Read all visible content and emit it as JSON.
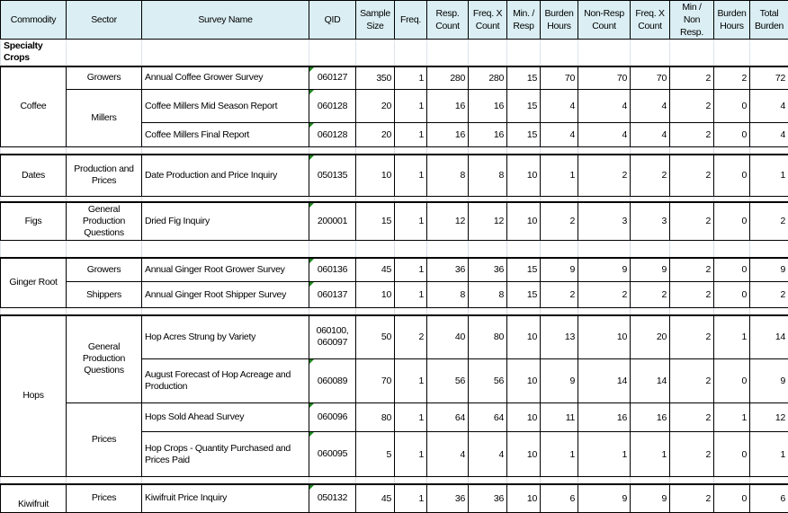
{
  "headers": [
    "Commodity",
    "Sector",
    "Survey Name",
    "QID",
    "Sample Size",
    "Freq.",
    "Resp. Count",
    "Freq. X Count",
    "Min. / Resp",
    "Burden Hours",
    "Non-Resp Count",
    "Freq. X Count",
    "Min / Non Resp.",
    "Burden Hours",
    "Total Burden"
  ],
  "section_title": "Specialty Crops",
  "colors": {
    "header_bg": "#daeef3",
    "comment_marker": "#1a8a1a"
  },
  "groups": [
    {
      "commodity": "Coffee",
      "sectors": [
        {
          "name": "Growers",
          "surveys": [
            {
              "name": "Annual Coffee Grower Survey",
              "qid": "060127",
              "values": [
                350,
                1,
                280,
                280,
                15,
                70,
                70,
                70,
                2,
                2,
                72
              ]
            }
          ]
        },
        {
          "name": "Millers",
          "surveys": [
            {
              "name": "Coffee Millers Mid Season Report",
              "qid": "060128",
              "values": [
                20,
                1,
                16,
                16,
                15,
                4,
                4,
                4,
                2,
                0,
                4
              ]
            },
            {
              "name": "Coffee Millers Final Report",
              "qid": "060128",
              "values": [
                20,
                1,
                16,
                16,
                15,
                4,
                4,
                4,
                2,
                0,
                4
              ]
            }
          ]
        }
      ]
    },
    {
      "commodity": "Dates",
      "sectors": [
        {
          "name": "Production and Prices",
          "surveys": [
            {
              "name": "Date Production and Price Inquiry",
              "qid": "050135",
              "values": [
                10,
                1,
                8,
                8,
                10,
                1,
                2,
                2,
                2,
                0,
                1
              ]
            }
          ]
        }
      ]
    },
    {
      "commodity": "Figs",
      "sectors": [
        {
          "name": "General Production Questions",
          "surveys": [
            {
              "name": "Dried Fig Inquiry",
              "qid": "200001",
              "values": [
                15,
                1,
                12,
                12,
                10,
                2,
                3,
                3,
                2,
                0,
                2
              ]
            }
          ]
        }
      ]
    },
    {
      "commodity": "Ginger Root",
      "sectors": [
        {
          "name": "Growers",
          "surveys": [
            {
              "name": "Annual Ginger Root Grower Survey",
              "qid": "060136",
              "values": [
                45,
                1,
                36,
                36,
                15,
                9,
                9,
                9,
                2,
                0,
                9
              ]
            }
          ]
        },
        {
          "name": "Shippers",
          "surveys": [
            {
              "name": "Annual Ginger Root Shipper Survey",
              "qid": "060137",
              "values": [
                10,
                1,
                8,
                8,
                15,
                2,
                2,
                2,
                2,
                0,
                2
              ]
            }
          ]
        }
      ]
    },
    {
      "commodity": "Hops",
      "sectors": [
        {
          "name": "General Production Questions",
          "surveys": [
            {
              "name": "Hop Acres Strung by Variety",
              "qid": "060100, 060097",
              "values": [
                50,
                2,
                40,
                80,
                10,
                13,
                10,
                20,
                2,
                1,
                14
              ]
            },
            {
              "name": "August Forecast of Hop Acreage and Production",
              "qid": "060089",
              "values": [
                70,
                1,
                56,
                56,
                10,
                9,
                14,
                14,
                2,
                0,
                9
              ]
            }
          ]
        },
        {
          "name": "Prices",
          "surveys": [
            {
              "name": "Hops Sold Ahead Survey",
              "qid": "060096",
              "values": [
                80,
                1,
                64,
                64,
                10,
                11,
                16,
                16,
                2,
                1,
                12
              ]
            },
            {
              "name": "Hop Crops - Quantity Purchased and Prices Paid",
              "qid": "060095",
              "values": [
                5,
                1,
                4,
                4,
                10,
                1,
                1,
                1,
                2,
                0,
                1
              ]
            }
          ]
        }
      ]
    },
    {
      "commodity": "Kiwifruit",
      "sectors": [
        {
          "name": "Prices",
          "surveys": [
            {
              "name": "Kiwifruit Price Inquiry",
              "qid": "050132",
              "values": [
                45,
                1,
                36,
                36,
                10,
                6,
                9,
                9,
                2,
                0,
                6
              ]
            }
          ]
        }
      ]
    }
  ]
}
